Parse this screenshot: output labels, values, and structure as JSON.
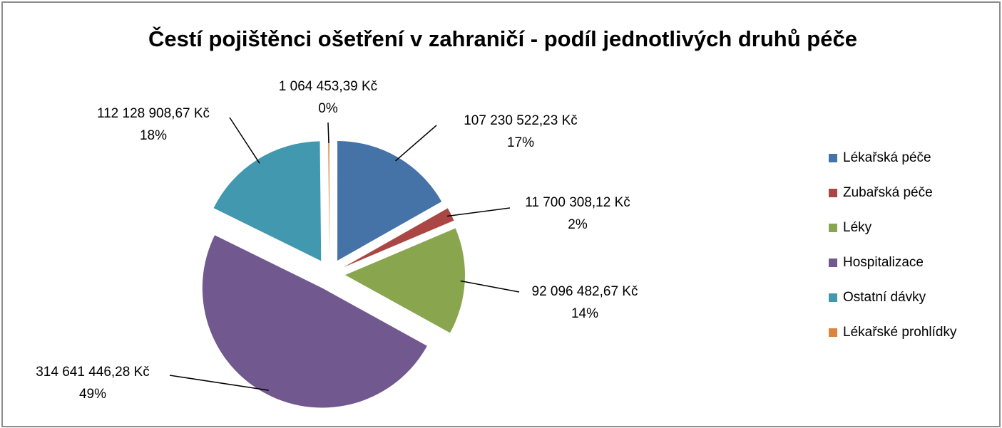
{
  "chart_data": {
    "type": "pie",
    "title": "Čestí pojištěnci ošetření v zahraničí - podíl jednotlivých druhů péče",
    "categories": [
      "Lékařská péče",
      "Zubařská péče",
      "Léky",
      "Hospitalizace",
      "Ostatní dávky",
      "Lékařské prohlídky"
    ],
    "values": [
      107230522.23,
      11700308.12,
      92096482.67,
      314641446.28,
      112128908.67,
      1064453.39
    ],
    "value_labels": [
      "107 230 522,23 Kč",
      "11 700 308,12 Kč",
      "92 096 482,67 Kč",
      "314 641 446,28 Kč",
      "112 128 908,67 Kč",
      "1 064 453,39 Kč"
    ],
    "percent_labels": [
      "17%",
      "2%",
      "14%",
      "49%",
      "18%",
      "0%"
    ],
    "colors": [
      "#4572a7",
      "#aa4643",
      "#89a54e",
      "#71588f",
      "#4198af",
      "#db843d"
    ],
    "legend": "right"
  }
}
